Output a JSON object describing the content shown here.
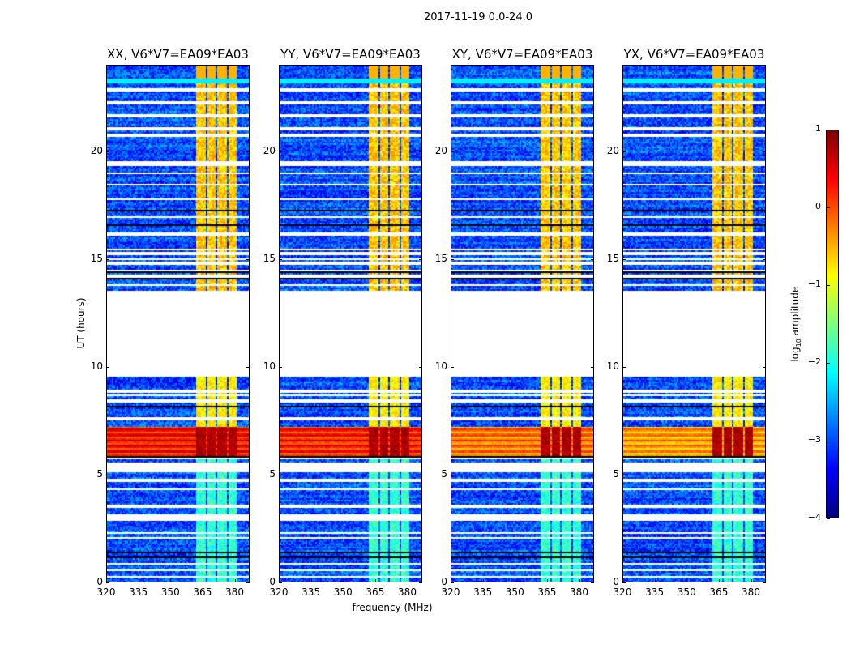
{
  "chart_data": {
    "type": "heatmap",
    "title": "2017-11-19 0.0-24.0",
    "xlabel": "frequency (MHz)",
    "ylabel": "UT (hours)",
    "xlim": [
      320,
      387
    ],
    "ylim": [
      0,
      24
    ],
    "xticks": [
      320,
      335,
      350,
      365,
      380
    ],
    "yticks": [
      0,
      5,
      10,
      15,
      20
    ],
    "panels": [
      {
        "title": "XX, V6*V7=EA09*EA03",
        "flare_level": 0.3
      },
      {
        "title": "YY, V6*V7=EA09*EA03",
        "flare_level": 0.2
      },
      {
        "title": "XY, V6*V7=EA09*EA03",
        "flare_level": -0.2
      },
      {
        "title": "YX, V6*V7=EA09*EA03",
        "flare_level": -0.4
      }
    ],
    "structure": {
      "background_level": -3.0,
      "bright_bands_mhz": [
        [
          362,
          366
        ],
        [
          367,
          371
        ],
        [
          372,
          376
        ],
        [
          377,
          381
        ]
      ],
      "data_gap_hours": [
        9.6,
        13.6
      ],
      "flare_hours": [
        5.8,
        7.2
      ],
      "flagged_white_rows_hours": [
        0.25,
        0.55,
        0.85,
        2.05,
        2.3,
        2.95,
        3.1,
        3.55,
        4.35,
        4.75,
        5.15,
        5.25,
        5.35,
        5.5,
        5.75,
        7.6,
        8.45,
        8.7,
        8.9,
        13.85,
        14.25,
        14.5,
        14.85,
        15.05,
        15.3,
        15.5,
        16.2,
        17.0,
        17.8,
        18.5,
        19.05,
        19.45,
        19.55,
        20.8,
        21.1,
        21.7,
        22.3,
        22.9
      ],
      "flagged_black_rows_hours": [
        1.15,
        1.4,
        5.85,
        8.2,
        14.1,
        14.4,
        17.3,
        16.6
      ]
    },
    "colorbar": {
      "label": "log10 amplitude",
      "label_main": "log",
      "label_sub": "10",
      "label_rest": " amplitude",
      "range": [
        -4,
        1
      ],
      "ticks": [
        "1",
        "0",
        "−1",
        "−2",
        "−3",
        "−4"
      ],
      "colormap": "jet"
    }
  }
}
